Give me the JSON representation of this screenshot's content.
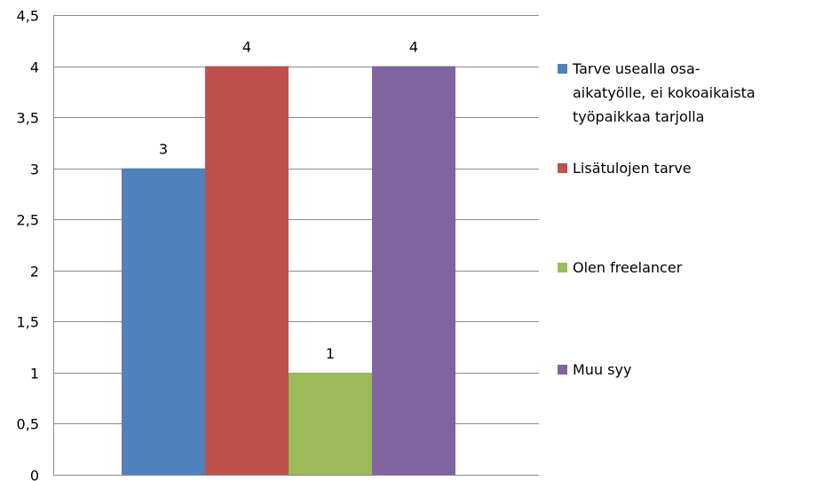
{
  "chart_data": {
    "type": "bar",
    "title": "",
    "xlabel": "",
    "ylabel": "",
    "ylim": [
      0,
      4.5
    ],
    "yticks": [
      "0",
      "0,5",
      "1",
      "1,5",
      "2",
      "2,5",
      "3",
      "3,5",
      "4",
      "4,5"
    ],
    "grid": true,
    "legend_position": "right",
    "series": [
      {
        "name": "Tarve usealla osa-\naikatyölle, ei kokoaikaista\ntyöpaikkaa tarjolla",
        "value": 3,
        "label": "3",
        "color": "#4F81BD"
      },
      {
        "name": "Lisätulojen tarve",
        "value": 4,
        "label": "4",
        "color": "#C0504D"
      },
      {
        "name": "Olen freelancer",
        "value": 1,
        "label": "1",
        "color": "#9BBB59"
      },
      {
        "name": "Muu syy",
        "value": 4,
        "label": "4",
        "color": "#8064A2"
      }
    ]
  }
}
